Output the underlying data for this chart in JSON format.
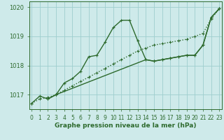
{
  "line1_x": [
    0,
    1,
    2,
    3,
    4,
    5,
    6,
    7,
    8,
    9,
    10,
    11,
    12,
    13,
    14,
    15,
    16,
    17,
    18,
    19,
    20,
    21,
    22,
    23
  ],
  "line1_y": [
    1016.7,
    1016.85,
    1016.9,
    1017.0,
    1017.15,
    1017.3,
    1017.45,
    1017.6,
    1017.75,
    1017.9,
    1018.05,
    1018.2,
    1018.35,
    1018.5,
    1018.6,
    1018.7,
    1018.75,
    1018.8,
    1018.85,
    1018.9,
    1019.0,
    1019.1,
    1019.6,
    1019.95
  ],
  "line1_style": "dotted",
  "line2_x": [
    0,
    1,
    2,
    3,
    4,
    5,
    6,
    7,
    8,
    9,
    10,
    11,
    12,
    13,
    14,
    15,
    16,
    17,
    18,
    19,
    20,
    21,
    22,
    23
  ],
  "line2_y": [
    1016.7,
    1016.95,
    1016.85,
    1017.0,
    1017.4,
    1017.55,
    1017.8,
    1018.3,
    1018.35,
    1018.8,
    1019.3,
    1019.55,
    1019.55,
    1018.85,
    1018.2,
    1018.15,
    1018.2,
    1018.25,
    1018.3,
    1018.35,
    1018.35,
    1018.7,
    1019.65,
    1019.95
  ],
  "line2_style": "solid",
  "line3_x": [
    2,
    3,
    14,
    15,
    16,
    17,
    18,
    19,
    20,
    21,
    22,
    23
  ],
  "line3_y": [
    1016.85,
    1017.0,
    1018.2,
    1018.15,
    1018.2,
    1018.25,
    1018.3,
    1018.35,
    1018.35,
    1018.7,
    1019.65,
    1019.95
  ],
  "line3_style": "solid",
  "bg_color": "#ceeaea",
  "line_color": "#2d6a2d",
  "grid_color": "#9ecece",
  "xlabel": "Graphe pression niveau de la mer (hPa)",
  "xlim": [
    -0.3,
    23.3
  ],
  "ylim": [
    1016.5,
    1020.2
  ],
  "yticks": [
    1017,
    1018,
    1019,
    1020
  ],
  "xticks": [
    0,
    1,
    2,
    3,
    4,
    5,
    6,
    7,
    8,
    9,
    10,
    11,
    12,
    13,
    14,
    15,
    16,
    17,
    18,
    19,
    20,
    21,
    22,
    23
  ],
  "marker": "+",
  "markersize": 3.5,
  "linewidth": 1.0,
  "xlabel_fontsize": 6.5,
  "tick_fontsize": 5.5
}
